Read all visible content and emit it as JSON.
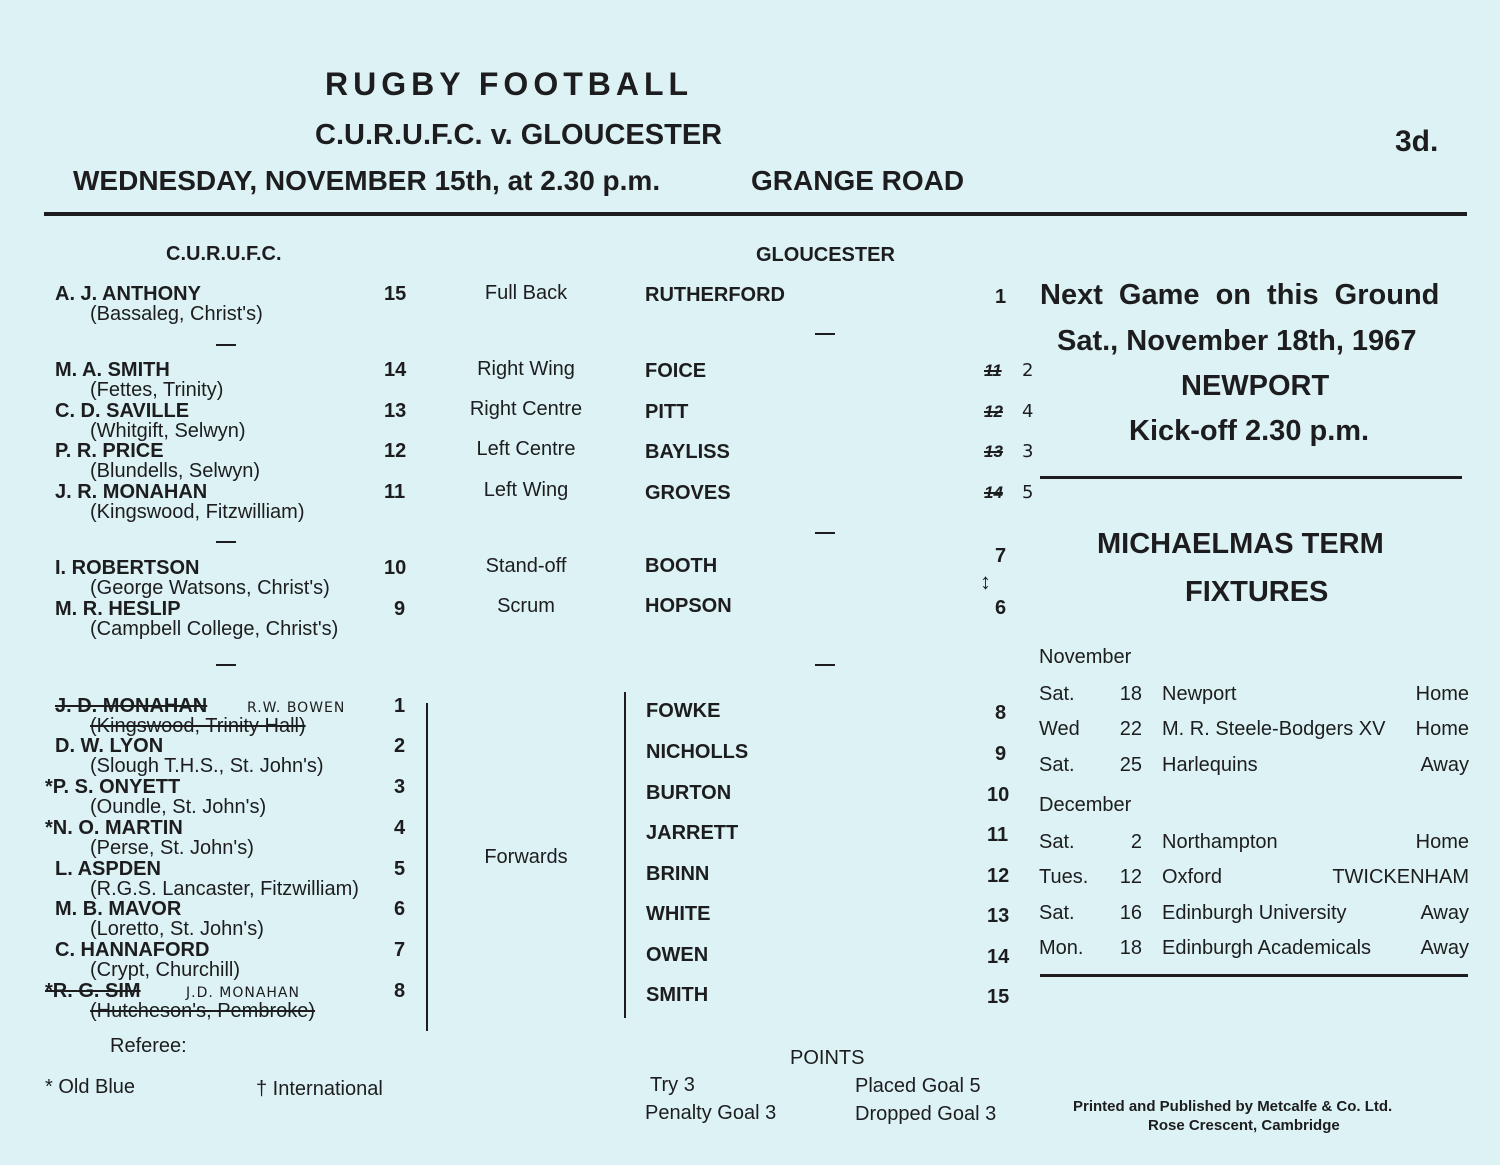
{
  "header": {
    "title": "RUGBY FOOTBALL",
    "match": "C.U.R.U.F.C. v. GLOUCESTER",
    "date_line": "WEDNESDAY, NOVEMBER 15th, at 2.30 p.m.",
    "venue": "GRANGE ROAD",
    "price": "3d."
  },
  "cu": {
    "heading": "C.U.R.U.F.C.",
    "players": [
      {
        "name": "A. J. ANTHONY",
        "school": "(Bassaleg, Christ's)",
        "number": "15"
      },
      {
        "name": "M. A. SMITH",
        "school": "(Fettes, Trinity)",
        "number": "14"
      },
      {
        "name": "C. D. SAVILLE",
        "school": "(Whitgift, Selwyn)",
        "number": "13"
      },
      {
        "name": "P. R. PRICE",
        "school": "(Blundells, Selwyn)",
        "number": "12"
      },
      {
        "name": "J. R. MONAHAN",
        "school": "(Kingswood, Fitzwilliam)",
        "number": "11"
      },
      {
        "name": "I. ROBERTSON",
        "school": "(George Watsons, Christ's)",
        "number": "10"
      },
      {
        "name": "M. R. HESLIP",
        "school": "(Campbell College, Christ's)",
        "number": "9"
      },
      {
        "name": "J. D. MONAHAN",
        "school": "(Kingswood, Trinity Hall)",
        "number": "1",
        "struck": true,
        "replacement": "R.W. BOWEN"
      },
      {
        "name": "D. W. LYON",
        "school": "(Slough T.H.S., St. John's)",
        "number": "2"
      },
      {
        "name": "*P. S. ONYETT",
        "school": "(Oundle, St. John's)",
        "number": "3"
      },
      {
        "name": "*N. O. MARTIN",
        "school": "(Perse, St. John's)",
        "number": "4"
      },
      {
        "name": "L. ASPDEN",
        "school": "(R.G.S. Lancaster, Fitzwilliam)",
        "number": "5"
      },
      {
        "name": "M. B. MAVOR",
        "school": "(Loretto, St. John's)",
        "number": "6"
      },
      {
        "name": "C. HANNAFORD",
        "school": "(Crypt, Churchill)",
        "number": "7"
      },
      {
        "name": "*R. G. SIM",
        "school": "(Hutcheson's, Pembroke)",
        "number": "8",
        "struck": true,
        "replacement": "J.D. MONAHAN"
      }
    ]
  },
  "positions": [
    "Full Back",
    "Right Wing",
    "Right Centre",
    "Left Centre",
    "Left Wing",
    "Stand-off",
    "Scrum",
    "Forwards"
  ],
  "gloucester": {
    "heading": "GLOUCESTER",
    "players": [
      {
        "name": "RUTHERFORD",
        "number": "1"
      },
      {
        "name": "FOICE",
        "number": "11",
        "amended": "2"
      },
      {
        "name": "PITT",
        "number": "12",
        "amended": "4"
      },
      {
        "name": "BAYLISS",
        "number": "13",
        "amended": "3"
      },
      {
        "name": "GROVES",
        "number": "14",
        "amended": "5"
      },
      {
        "name": "BOOTH",
        "number": "7"
      },
      {
        "name": "HOPSON",
        "number": "6"
      },
      {
        "name": "FOWKE",
        "number": "8"
      },
      {
        "name": "NICHOLLS",
        "number": "9"
      },
      {
        "name": "BURTON",
        "number": "10"
      },
      {
        "name": "JARRETT",
        "number": "11"
      },
      {
        "name": "BRINN",
        "number": "12"
      },
      {
        "name": "WHITE",
        "number": "13"
      },
      {
        "name": "OWEN",
        "number": "14"
      },
      {
        "name": "SMITH",
        "number": "15"
      }
    ]
  },
  "next_game": {
    "line1": "Next Game on this Ground",
    "line2": "Sat., November 18th, 1967",
    "opponent": "NEWPORT",
    "kickoff": "Kick-off 2.30 p.m."
  },
  "fixtures": {
    "heading1": "MICHAELMAS TERM",
    "heading2": "FIXTURES",
    "months": [
      {
        "month": "November",
        "games": [
          {
            "day": "Sat.",
            "date": "18",
            "opponent": "Newport",
            "venue": "Home"
          },
          {
            "day": "Wed",
            "date": "22",
            "opponent": "M. R. Steele-Bodgers XV",
            "venue": "Home"
          },
          {
            "day": "Sat.",
            "date": "25",
            "opponent": "Harlequins",
            "venue": "Away"
          }
        ]
      },
      {
        "month": "December",
        "games": [
          {
            "day": "Sat.",
            "date": "2",
            "opponent": "Northampton",
            "venue": "Home"
          },
          {
            "day": "Tues.",
            "date": "12",
            "opponent": "Oxford",
            "venue": "TWICKENHAM"
          },
          {
            "day": "Sat.",
            "date": "16",
            "opponent": "Edinburgh University",
            "venue": "Away"
          },
          {
            "day": "Mon.",
            "date": "18",
            "opponent": "Edinburgh Academicals",
            "venue": "Away"
          }
        ]
      }
    ]
  },
  "footer": {
    "referee": "Referee:",
    "old_blue": "* Old Blue",
    "international": "† International",
    "points": {
      "heading": "POINTS",
      "try": "Try 3",
      "penalty": "Penalty Goal 3",
      "placed": "Placed Goal 5",
      "dropped": "Dropped Goal 3"
    },
    "printer1": "Printed and Published by Metcalfe & Co. Ltd.",
    "printer2": "Rose Crescent, Cambridge"
  }
}
